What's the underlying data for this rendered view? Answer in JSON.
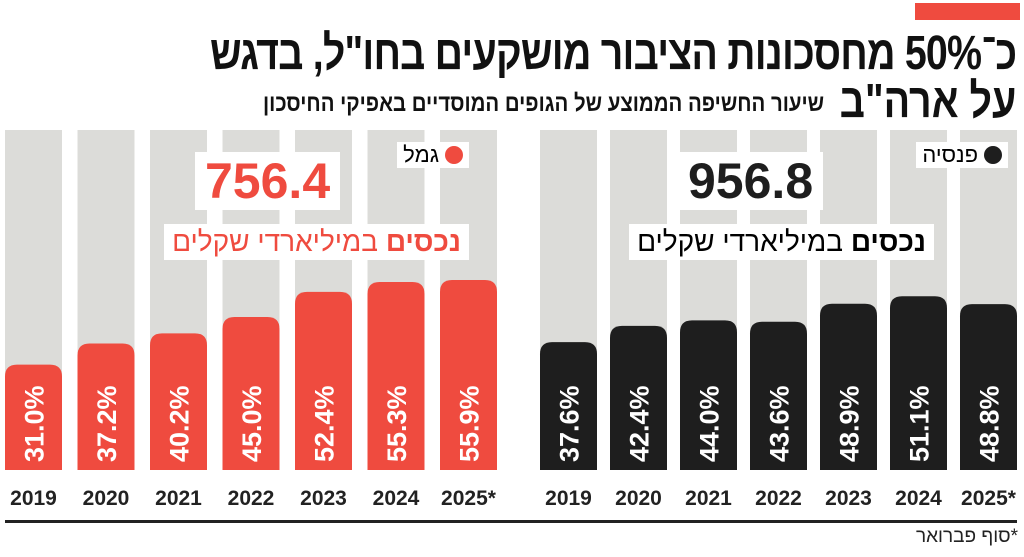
{
  "header": {
    "title_line1": "כ־50% מחסכונות הציבור מושקעים בחו\"ל, בדגש",
    "title_line2": "על ארה\"ב",
    "subtitle": "שיעור החשיפה הממוצע של הגופים המוסדיים באפיקי החיסכון"
  },
  "footnote": "*סוף פברואר",
  "colors": {
    "gemel": "#ef4b3f",
    "pension": "#1e1e1e",
    "background_column": "#dcdcd9",
    "accent_bar": "#ef4b3f"
  },
  "chart_data": [
    {
      "type": "bar",
      "legend": "גמל",
      "total_value": "756.4",
      "unit_bold": "נכסים",
      "unit_rest": " במיליארדי שקלים",
      "categories": [
        "2019",
        "2020",
        "2021",
        "2022",
        "2023",
        "2024",
        "2025*"
      ],
      "values": [
        31.0,
        37.2,
        40.2,
        45.0,
        52.4,
        55.3,
        55.9
      ],
      "labels": [
        "31.0%",
        "37.2%",
        "40.2%",
        "45.0%",
        "52.4%",
        "55.3%",
        "55.9%"
      ],
      "ylim": [
        0,
        100
      ],
      "color": "#ef4b3f"
    },
    {
      "type": "bar",
      "legend": "פנסיה",
      "total_value": "956.8",
      "unit_bold": "נכסים",
      "unit_rest": " במיליארדי שקלים",
      "categories": [
        "2019",
        "2020",
        "2021",
        "2022",
        "2023",
        "2024",
        "2025*"
      ],
      "values": [
        37.6,
        42.4,
        44.0,
        43.6,
        48.9,
        51.1,
        48.8
      ],
      "labels": [
        "37.6%",
        "42.4%",
        "44.0%",
        "43.6%",
        "48.9%",
        "51.1%",
        "48.8%"
      ],
      "ylim": [
        0,
        100
      ],
      "color": "#1e1e1e"
    }
  ]
}
